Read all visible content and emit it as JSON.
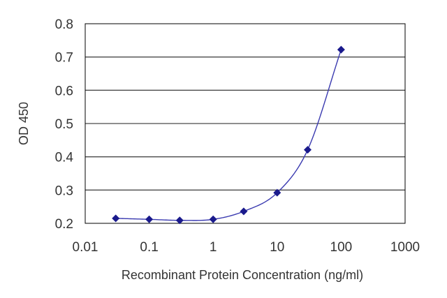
{
  "chart_data": {
    "type": "scatter",
    "title": "",
    "xlabel": "Recombinant Protein Concentration (ng/ml)",
    "ylabel": "OD 450",
    "xscale": "log",
    "xlim": [
      0.01,
      1000
    ],
    "ylim": [
      0.2,
      0.8
    ],
    "xticks": [
      0.01,
      0.1,
      1,
      10,
      100,
      1000
    ],
    "xtick_labels": [
      "0.01",
      "0.1",
      "1",
      "10",
      "100",
      "1000"
    ],
    "yticks": [
      0.2,
      0.3,
      0.4,
      0.5,
      0.6,
      0.7,
      0.8
    ],
    "ytick_labels": [
      "0.2",
      "0.3",
      "0.4",
      "0.5",
      "0.6",
      "0.7",
      "0.8"
    ],
    "grid": "horizontal",
    "legend": "none",
    "series": [
      {
        "marker": "diamond",
        "fitted_curve": true,
        "color": "#1a1a8c",
        "x": [
          0.03,
          0.1,
          0.3,
          1,
          3,
          10,
          30,
          100
        ],
        "y": [
          0.215,
          0.212,
          0.209,
          0.212,
          0.236,
          0.292,
          0.421,
          0.722
        ]
      }
    ]
  }
}
